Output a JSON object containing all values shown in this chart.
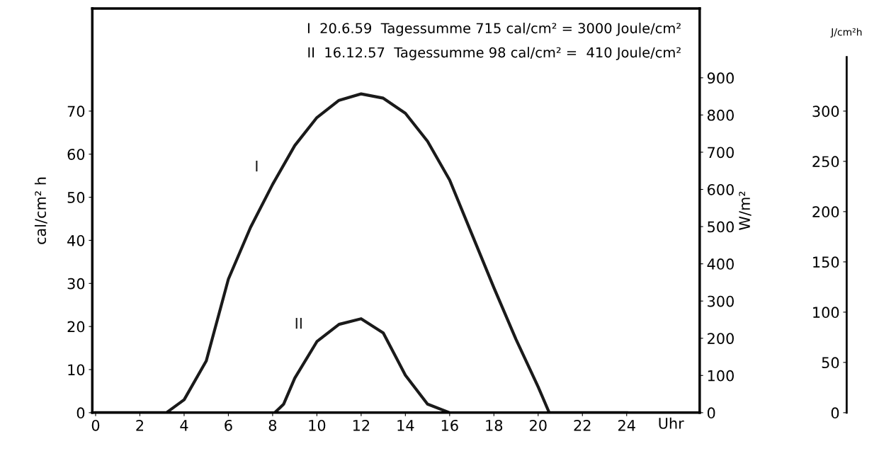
{
  "chart_data": {
    "type": "line",
    "ylabel": "cal/cm² h",
    "y2label": "W/m²",
    "y3label": "J/cm²h",
    "xlabel": "Uhr",
    "annotations": [
      "I  20.6.59  Tagessumme 715 cal/cm² = 3000 Joule/cm²",
      "II  16.12.57  Tagessumme 98 cal/cm² =  410 Joule/cm²"
    ],
    "series": [
      {
        "name": "I",
        "color": "#1a1a1a",
        "x": [
          0,
          3.2,
          4,
          5,
          6,
          7,
          8,
          9,
          10,
          11,
          12,
          13,
          14,
          15,
          16,
          17,
          18,
          19,
          20,
          20.5,
          24
        ],
        "values": [
          0,
          0,
          3,
          12,
          31,
          43,
          53,
          62,
          68.5,
          72.5,
          74,
          73,
          69.5,
          63,
          54,
          41.5,
          29,
          17,
          6,
          0,
          0
        ]
      },
      {
        "name": "II",
        "color": "#1a1a1a",
        "x": [
          8.1,
          8.5,
          9,
          10,
          11,
          12,
          13,
          14,
          15,
          16
        ],
        "values": [
          0,
          2,
          8,
          16.5,
          20.5,
          21.8,
          18.5,
          8.7,
          2,
          0
        ]
      }
    ],
    "xlim": [
      -0.15,
      27.3
    ],
    "xticks": [
      0,
      2,
      4,
      6,
      8,
      10,
      12,
      14,
      16,
      18,
      20,
      22,
      24
    ],
    "ylim": [
      0,
      93.8
    ],
    "yticks": [
      0,
      10,
      20,
      30,
      40,
      50,
      60,
      70
    ],
    "y2lim": [
      0,
      1086
    ],
    "y2ticks": [
      0,
      100,
      200,
      300,
      400,
      500,
      600,
      700,
      800,
      900
    ],
    "y3lim": [
      0,
      402
    ],
    "y3ticks": [
      0,
      50,
      100,
      150,
      200,
      250,
      300
    ],
    "grid": false,
    "legend": false,
    "marker": "none",
    "line_style": "solid"
  }
}
